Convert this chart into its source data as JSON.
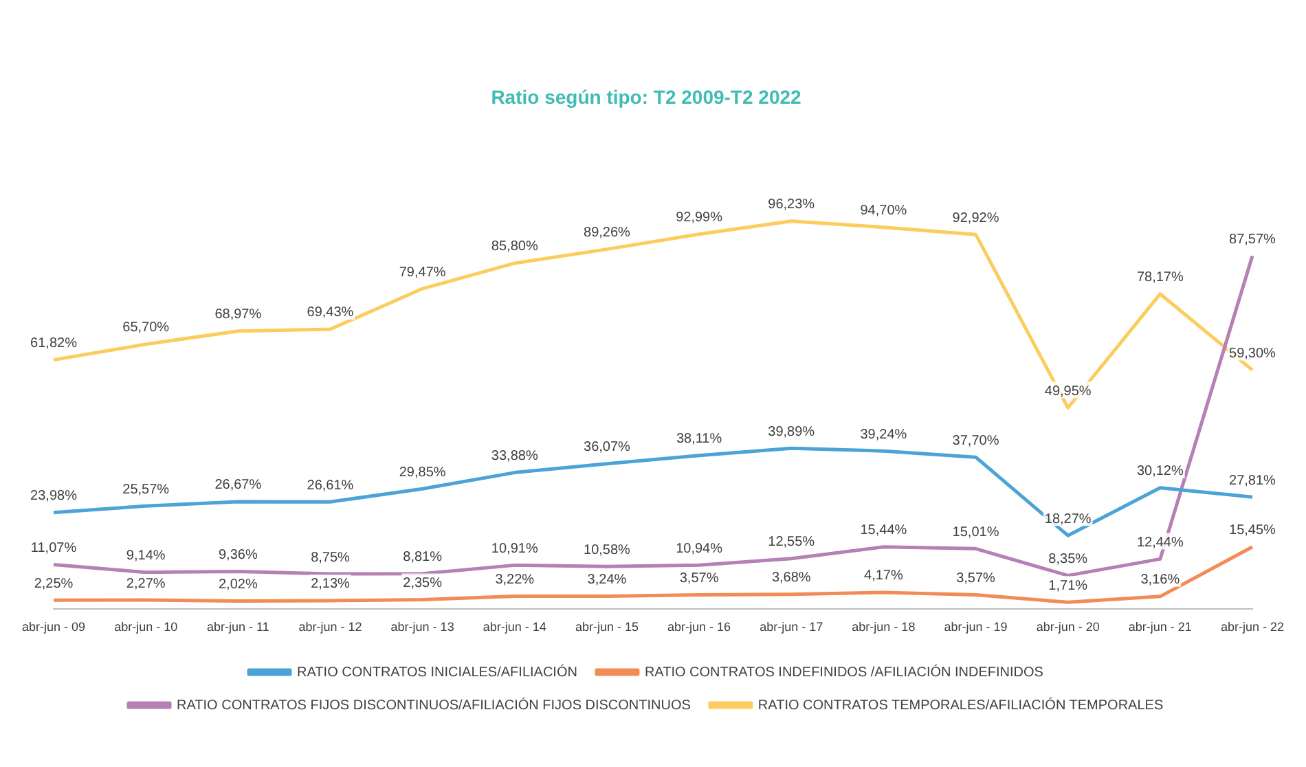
{
  "chart_data": {
    "type": "line",
    "title": "Ratio según tipo: T2 2009-T2 2022",
    "categories": [
      "abr-jun - 09",
      "abr-jun - 10",
      "abr-jun - 11",
      "abr-jun - 12",
      "abr-jun - 13",
      "abr-jun - 14",
      "abr-jun - 15",
      "abr-jun - 16",
      "abr-jun - 17",
      "abr-jun - 18",
      "abr-jun - 19",
      "abr-jun - 20",
      "abr-jun - 21",
      "abr-jun - 22"
    ],
    "series": [
      {
        "name": "RATIO CONTRATOS INICIALES/AFILIACIÓN",
        "color": "#4ba3d6",
        "values": [
          23.98,
          25.57,
          26.67,
          26.61,
          29.85,
          33.88,
          36.07,
          38.11,
          39.89,
          39.24,
          37.7,
          18.27,
          30.12,
          27.81
        ],
        "value_labels": [
          "23,98%",
          "25,57%",
          "26,67%",
          "26,61%",
          "29,85%",
          "33,88%",
          "36,07%",
          "38,11%",
          "39,89%",
          "39,24%",
          "37,70%",
          "18,27%",
          "30,12%",
          "27,81%"
        ]
      },
      {
        "name": "RATIO CONTRATOS INDEFINIDOS /AFILIACIÓN INDEFINIDOS",
        "color": "#f28c57",
        "values": [
          2.25,
          2.27,
          2.02,
          2.13,
          2.35,
          3.22,
          3.24,
          3.57,
          3.68,
          4.17,
          3.57,
          1.71,
          3.16,
          15.45
        ],
        "value_labels": [
          "2,25%",
          "2,27%",
          "2,02%",
          "2,13%",
          "2,35%",
          "3,22%",
          "3,24%",
          "3,57%",
          "3,68%",
          "4,17%",
          "3,57%",
          "1,71%",
          "3,16%",
          "15,45%"
        ]
      },
      {
        "name": "RATIO CONTRATOS FIJOS DISCONTINUOS/AFILIACIÓN FIJOS DISCONTINUOS",
        "color": "#b480b6",
        "values": [
          11.07,
          9.14,
          9.36,
          8.75,
          8.81,
          10.91,
          10.58,
          10.94,
          12.55,
          15.44,
          15.01,
          8.35,
          12.44,
          87.57
        ],
        "value_labels": [
          "11,07%",
          "9,14%",
          "9,36%",
          "8,75%",
          "8,81%",
          "10,91%",
          "10,58%",
          "10,94%",
          "12,55%",
          "15,44%",
          "15,01%",
          "8,35%",
          "12,44%",
          "87,57%"
        ]
      },
      {
        "name": "RATIO CONTRATOS TEMPORALES/AFILIACIÓN TEMPORALES",
        "color": "#fbcd5f",
        "values": [
          61.82,
          65.7,
          68.97,
          69.43,
          79.47,
          85.8,
          89.26,
          92.99,
          96.23,
          94.7,
          92.92,
          49.95,
          78.17,
          59.3
        ],
        "value_labels": [
          "61,82%",
          "65,70%",
          "68,97%",
          "69,43%",
          "79,47%",
          "85,80%",
          "89,26%",
          "92,99%",
          "96,23%",
          "94,70%",
          "92,92%",
          "49,95%",
          "78,17%",
          "59,30%"
        ]
      }
    ],
    "legend": "bottom",
    "grid": false,
    "marker": "none",
    "line_style": "solid",
    "tick_labels": "x"
  }
}
